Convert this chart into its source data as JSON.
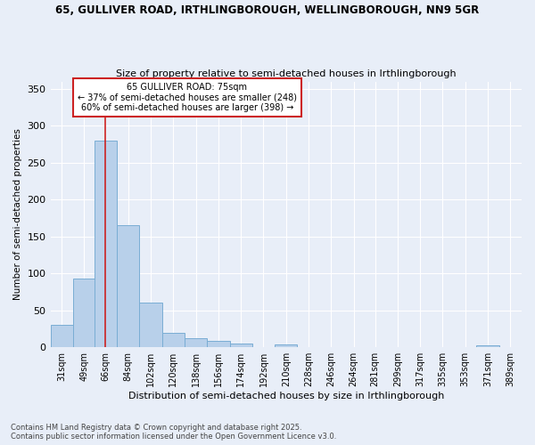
{
  "title1": "65, GULLIVER ROAD, IRTHLINGBOROUGH, WELLINGBOROUGH, NN9 5GR",
  "title2": "Size of property relative to semi-detached houses in Irthlingborough",
  "xlabel": "Distribution of semi-detached houses by size in Irthlingborough",
  "ylabel": "Number of semi-detached properties",
  "footer1": "Contains HM Land Registry data © Crown copyright and database right 2025.",
  "footer2": "Contains public sector information licensed under the Open Government Licence v3.0.",
  "bins": [
    31,
    49,
    66,
    84,
    102,
    120,
    138,
    156,
    174,
    192,
    210,
    228,
    246,
    264,
    281,
    299,
    317,
    335,
    353,
    371,
    389
  ],
  "counts": [
    30,
    93,
    280,
    165,
    60,
    20,
    12,
    9,
    5,
    0,
    4,
    0,
    0,
    0,
    0,
    0,
    0,
    0,
    0,
    3,
    0
  ],
  "bar_color": "#b8d0ea",
  "bar_edge_color": "#7aadd4",
  "property_size": 75,
  "property_bin_index": 2,
  "property_label": "65 GULLIVER ROAD: 75sqm",
  "pct_smaller": 37,
  "n_smaller": 248,
  "pct_larger": 60,
  "n_larger": 398,
  "red_line_color": "#cc2222",
  "annotation_box_color": "#cc2222",
  "bg_color": "#e8eef8",
  "grid_color": "#ffffff",
  "ylim": [
    0,
    360
  ],
  "yticks": [
    0,
    50,
    100,
    150,
    200,
    250,
    300,
    350
  ]
}
